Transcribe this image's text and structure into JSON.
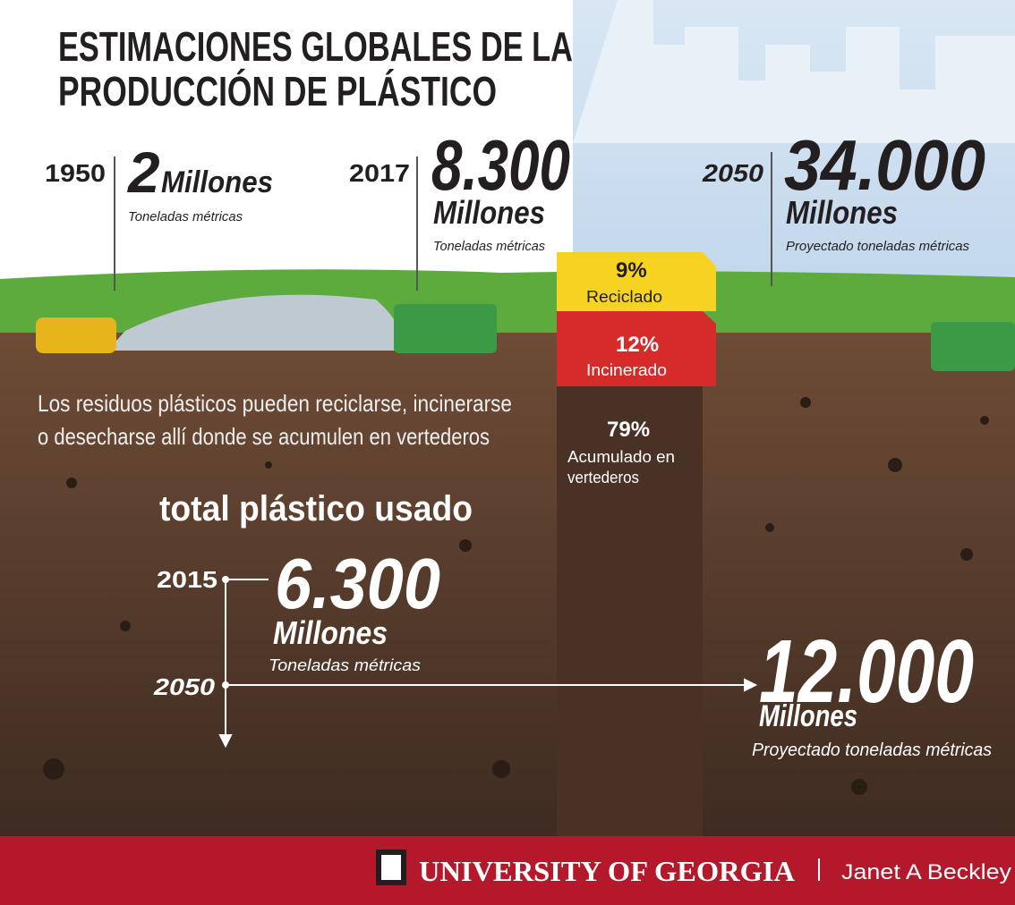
{
  "header": {
    "title": [
      "ESTIMACIONES GLOBALES DE LA",
      "PRODUCCIÓN DE PLÁSTICO"
    ]
  },
  "production": [
    {
      "year": "1950",
      "amount": "2",
      "unit": "Millones",
      "note": "Toneladas métricas"
    },
    {
      "year": "2017",
      "amount": "8.300",
      "unit": "Millones",
      "note": "Toneladas métricas"
    },
    {
      "year": "2050",
      "amount": "34.000",
      "unit": "Millones",
      "note": "Proyectado toneladas métricas"
    }
  ],
  "disposal": [
    {
      "percent": "9%",
      "label": [
        "Reciclado"
      ]
    },
    {
      "percent": "12%",
      "label": [
        "Incinerado"
      ]
    },
    {
      "percent": "79%",
      "label": [
        "Acumulado en",
        "vertederos"
      ]
    }
  ],
  "description": [
    "Los residuos plásticos pueden reciclarse, incinerarse",
    "o desecharse allí donde se acumulen en vertederos"
  ],
  "total": {
    "title": "total plástico usado",
    "items": [
      {
        "year": "2015",
        "amount": "6.300",
        "unit": "Millones",
        "note": "Toneladas métricas"
      },
      {
        "year": "2050",
        "amount": "12.000",
        "unit": "Millones",
        "note": "Proyectado toneladas métricas"
      }
    ]
  },
  "footer": {
    "institution": "UNIVERSITY OF GEORGIA",
    "author": "Janet A Beckley"
  }
}
